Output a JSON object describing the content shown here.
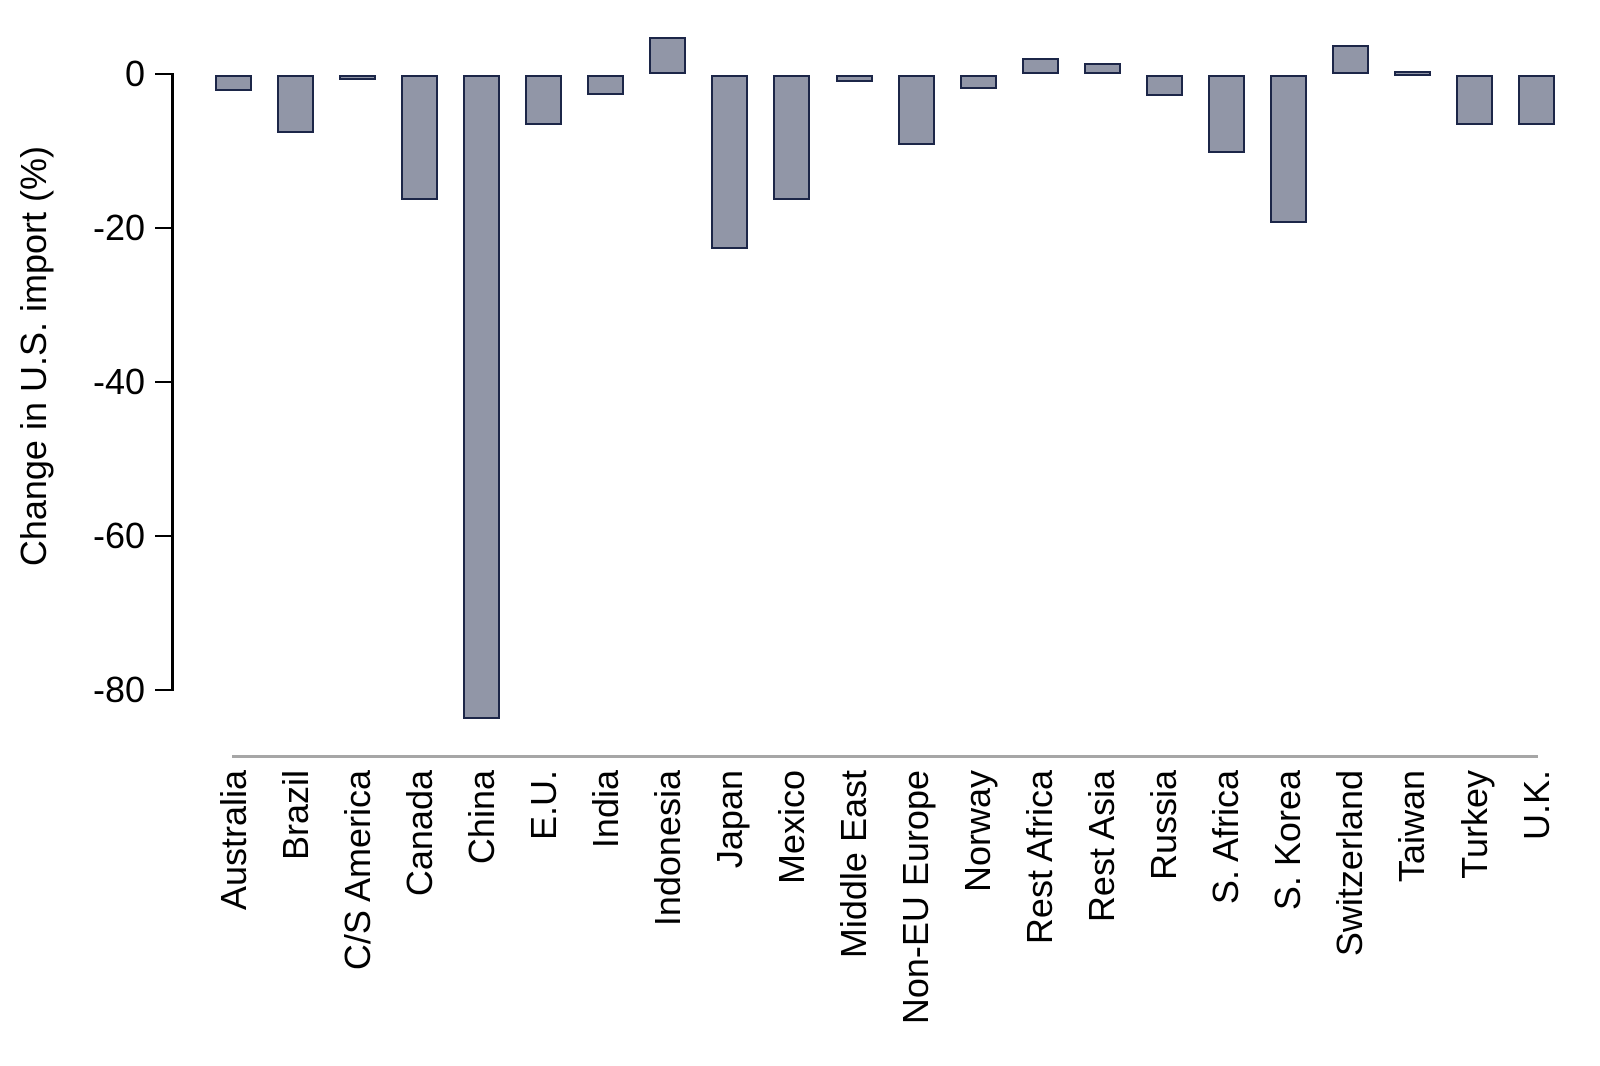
{
  "chart_data": {
    "type": "bar",
    "ylabel": "Change in U.S. import (%)",
    "categories": [
      "Australia",
      "Brazil",
      "C/S America",
      "Canada",
      "China",
      "E.U.",
      "India",
      "Indonesia",
      "Japan",
      "Mexico",
      "Middle East",
      "Non-EU Europe",
      "Norway",
      "Rest Africa",
      "Rest Asia",
      "Russia",
      "S. Africa",
      "S. Korea",
      "Switzerland",
      "Taiwan",
      "Turkey",
      "U.K."
    ],
    "values": [
      -2.2,
      -7.7,
      -0.5,
      -16.4,
      -83.8,
      -6.6,
      -2.7,
      4.7,
      -22.7,
      -16.4,
      -1.0,
      -9.2,
      -1.9,
      1.9,
      1.3,
      -2.9,
      -10.3,
      -19.3,
      3.7,
      0.3,
      -6.6,
      -6.6
    ],
    "yticks": [
      0,
      -20,
      -40,
      -60,
      -80
    ],
    "ytick_labels": [
      "0",
      "-20",
      "-40",
      "-60",
      "-80"
    ],
    "ylim": [
      -86,
      6
    ],
    "grid": false,
    "legend": false,
    "orientation": "vertical",
    "colors": {
      "bar_fill": "#9196a7",
      "bar_border": "#1c2648",
      "axis": "#000000",
      "x_baseline": "#a6a6a6",
      "text": "#000000",
      "background": "#ffffff"
    }
  }
}
